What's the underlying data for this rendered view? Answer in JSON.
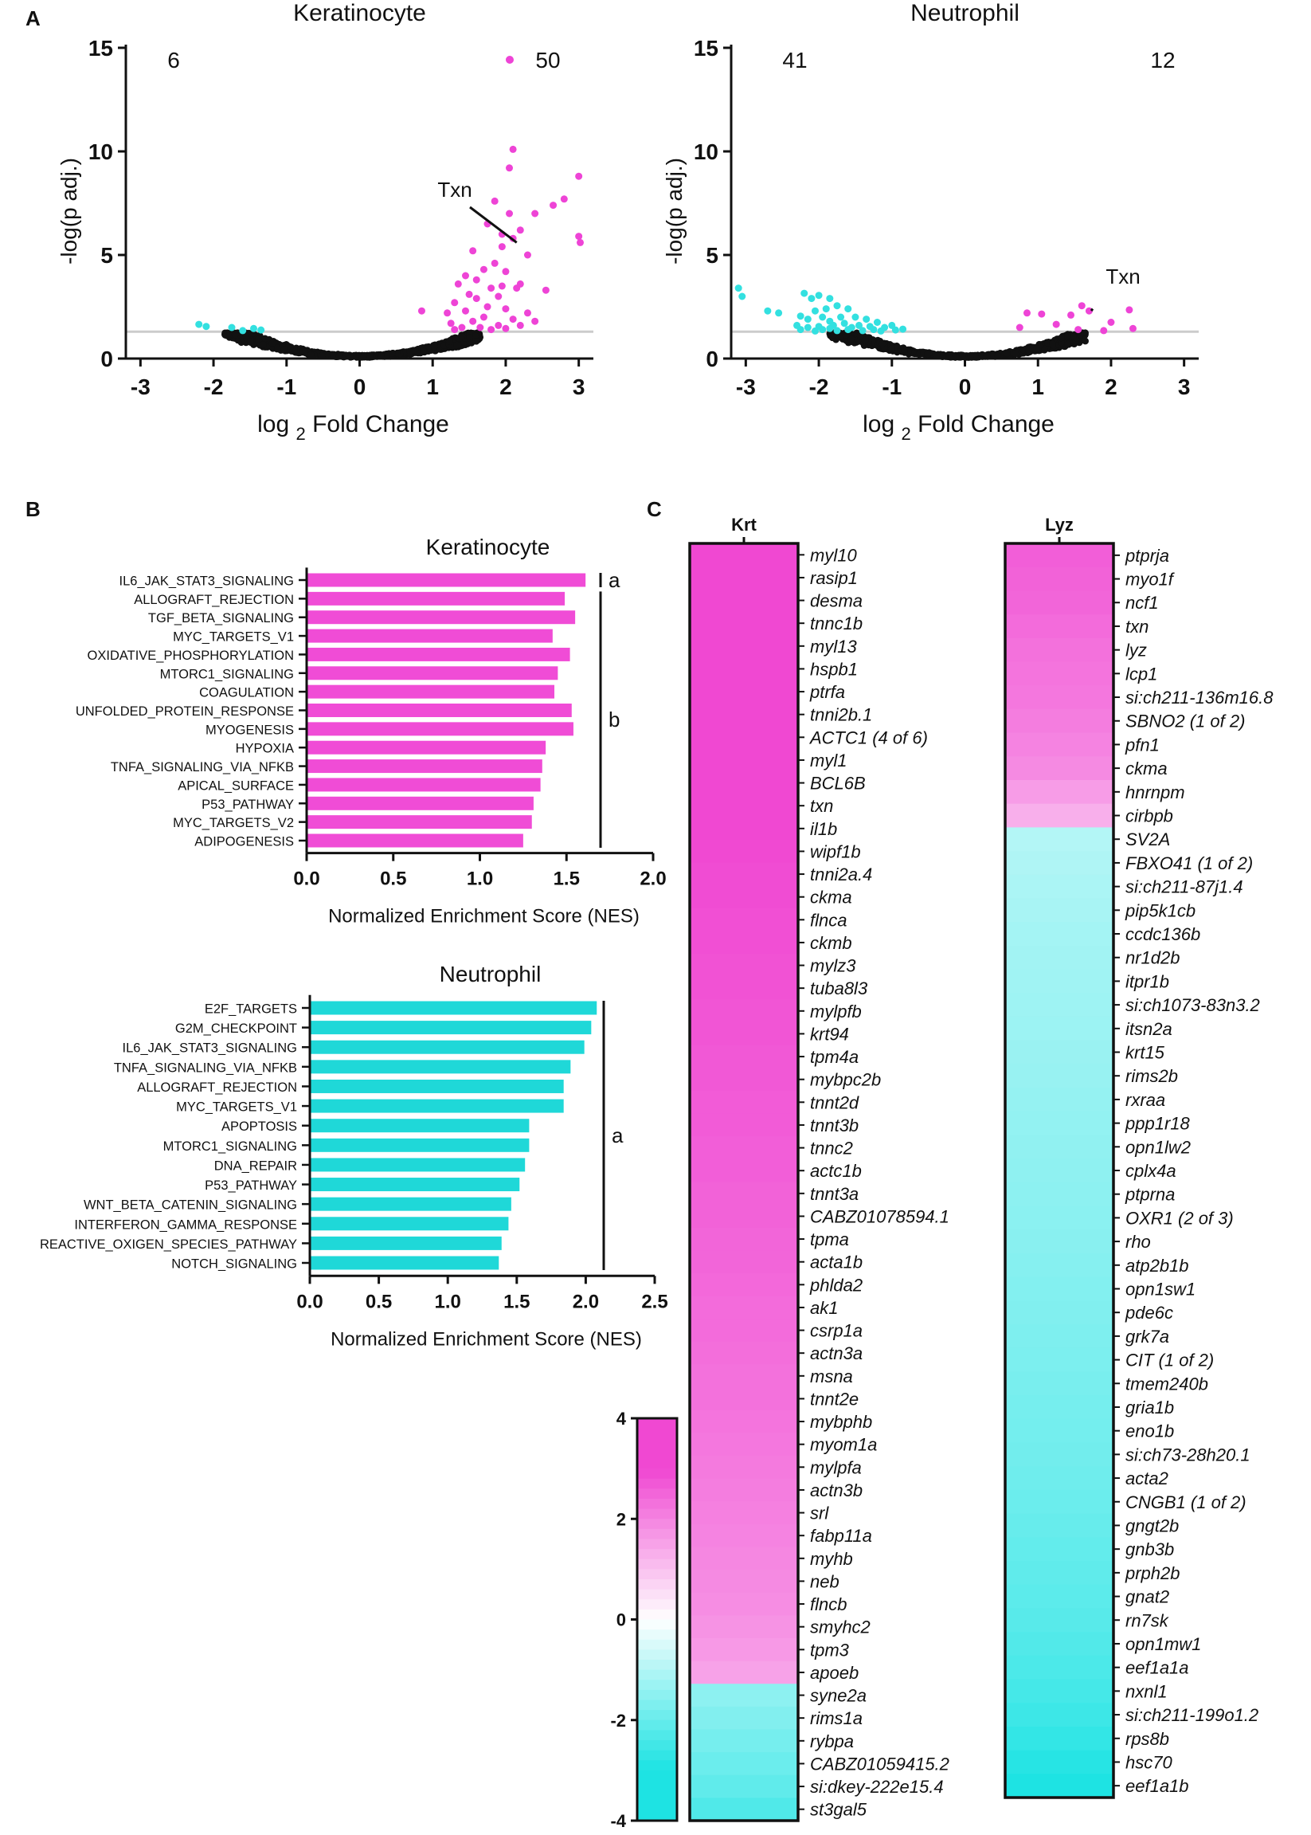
{
  "panel_labels": [
    "A",
    "B",
    "C"
  ],
  "chart_data": [
    {
      "type": "scatter",
      "panel": "A",
      "title": "Keratinocyte",
      "xlabel_main": "log",
      "xlabel_sub": "2",
      "xlabel_tail": "Fold Change",
      "ylabel": "-log(p adj.)",
      "xlim": [
        -3.2,
        3.2
      ],
      "ylim": [
        0,
        15
      ],
      "xticks": [
        -3,
        -2,
        -1,
        0,
        1,
        2,
        3
      ],
      "yticks": [
        0,
        5,
        10,
        15
      ],
      "threshold": 1.3,
      "count_left": "6",
      "count_right": "50",
      "annotation": {
        "label": "Txn",
        "x": 2.15,
        "y": 5.6
      },
      "colors": {
        "up": "#ee44d6",
        "down": "#33e0e0",
        "ns": "#111111",
        "threshold": "#cccccc"
      },
      "points_up": [
        [
          2.1,
          10.1
        ],
        [
          2.05,
          9.2
        ],
        [
          3.0,
          8.8
        ],
        [
          2.8,
          7.7
        ],
        [
          2.65,
          7.4
        ],
        [
          1.85,
          7.6
        ],
        [
          2.05,
          7.0
        ],
        [
          2.4,
          7.0
        ],
        [
          1.75,
          6.5
        ],
        [
          2.2,
          6.2
        ],
        [
          1.95,
          6.0
        ],
        [
          2.1,
          5.8
        ],
        [
          3.0,
          5.9
        ],
        [
          3.02,
          5.6
        ],
        [
          1.55,
          5.2
        ],
        [
          1.95,
          5.4
        ],
        [
          2.3,
          5.0
        ],
        [
          1.85,
          4.6
        ],
        [
          1.7,
          4.3
        ],
        [
          2.0,
          4.2
        ],
        [
          1.45,
          4.0
        ],
        [
          1.6,
          3.8
        ],
        [
          2.2,
          3.6
        ],
        [
          1.35,
          3.6
        ],
        [
          1.95,
          3.5
        ],
        [
          2.15,
          3.4
        ],
        [
          1.8,
          3.4
        ],
        [
          1.5,
          3.1
        ],
        [
          2.55,
          3.3
        ],
        [
          1.9,
          3.0
        ],
        [
          1.6,
          2.9
        ],
        [
          1.3,
          2.7
        ],
        [
          1.75,
          2.5
        ],
        [
          2.0,
          2.4
        ],
        [
          1.45,
          2.3
        ],
        [
          2.3,
          2.2
        ],
        [
          1.2,
          2.2
        ],
        [
          1.7,
          2.0
        ],
        [
          2.1,
          1.9
        ],
        [
          1.55,
          1.8
        ],
        [
          2.4,
          1.8
        ],
        [
          1.25,
          1.7
        ],
        [
          1.9,
          1.6
        ],
        [
          2.2,
          1.6
        ],
        [
          1.4,
          1.5
        ],
        [
          1.65,
          1.5
        ],
        [
          2.0,
          1.45
        ],
        [
          1.3,
          1.4
        ],
        [
          1.8,
          1.4
        ],
        [
          0.85,
          2.3
        ]
      ],
      "points_down": [
        [
          -2.2,
          1.65
        ],
        [
          -2.1,
          1.55
        ],
        [
          -1.75,
          1.5
        ],
        [
          -1.45,
          1.45
        ],
        [
          -1.35,
          1.38
        ],
        [
          -1.6,
          1.35
        ]
      ],
      "ns_seed": 7
    },
    {
      "type": "scatter",
      "panel": "A",
      "title": "Neutrophil",
      "xlabel_main": "log",
      "xlabel_sub": "2",
      "xlabel_tail": "Fold Change",
      "ylabel": "-log(p adj.)",
      "xlim": [
        -3.2,
        3.2
      ],
      "ylim": [
        0,
        15
      ],
      "xticks": [
        -3,
        -2,
        -1,
        0,
        1,
        2,
        3
      ],
      "yticks": [
        0,
        5,
        10,
        15
      ],
      "threshold": 1.3,
      "count_left": "41",
      "count_right": "12",
      "annotation": {
        "label": "Txn",
        "x": 1.75,
        "y": 2.4
      },
      "colors": {
        "up": "#ee44d6",
        "down": "#33e0e0",
        "ns": "#111111",
        "threshold": "#cccccc"
      },
      "points_up": [
        [
          1.6,
          2.55
        ],
        [
          1.7,
          2.3
        ],
        [
          2.25,
          2.35
        ],
        [
          1.45,
          2.1
        ],
        [
          0.85,
          2.2
        ],
        [
          1.05,
          2.15
        ],
        [
          2.0,
          1.75
        ],
        [
          1.25,
          1.65
        ],
        [
          0.75,
          1.5
        ],
        [
          2.3,
          1.45
        ],
        [
          1.55,
          1.4
        ],
        [
          1.9,
          1.35
        ]
      ],
      "points_down": [
        [
          -3.1,
          3.4
        ],
        [
          -3.05,
          3.0
        ],
        [
          -2.2,
          3.15
        ],
        [
          -2.0,
          3.05
        ],
        [
          -2.1,
          2.9
        ],
        [
          -1.85,
          2.9
        ],
        [
          -2.7,
          2.3
        ],
        [
          -2.55,
          2.2
        ],
        [
          -2.05,
          2.3
        ],
        [
          -1.9,
          2.4
        ],
        [
          -1.75,
          2.55
        ],
        [
          -1.6,
          2.4
        ],
        [
          -2.25,
          2.05
        ],
        [
          -2.15,
          1.9
        ],
        [
          -1.95,
          2.0
        ],
        [
          -1.85,
          1.8
        ],
        [
          -1.7,
          2.0
        ],
        [
          -1.5,
          2.0
        ],
        [
          -1.35,
          1.9
        ],
        [
          -1.2,
          1.75
        ],
        [
          -2.3,
          1.6
        ],
        [
          -2.15,
          1.5
        ],
        [
          -2.0,
          1.55
        ],
        [
          -1.8,
          1.6
        ],
        [
          -1.65,
          1.7
        ],
        [
          -1.55,
          1.5
        ],
        [
          -1.45,
          1.6
        ],
        [
          -1.3,
          1.55
        ],
        [
          -1.1,
          1.5
        ],
        [
          -1.0,
          1.6
        ],
        [
          -2.25,
          1.4
        ],
        [
          -1.95,
          1.4
        ],
        [
          -1.75,
          1.35
        ],
        [
          -1.6,
          1.4
        ],
        [
          -1.4,
          1.35
        ],
        [
          -1.25,
          1.4
        ],
        [
          -0.95,
          1.38
        ],
        [
          -2.05,
          1.33
        ],
        [
          -1.85,
          1.45
        ],
        [
          -1.15,
          1.33
        ],
        [
          -0.85,
          1.42
        ]
      ],
      "ns_seed": 13
    },
    {
      "type": "bar",
      "panel": "B",
      "orientation": "horizontal",
      "title": "Keratinocyte",
      "xlabel": "Normalized Enrichment Score (NES)",
      "xlim": [
        0,
        2.0
      ],
      "xticks": [
        "0.0",
        "0.5",
        "1.0",
        "1.5",
        "2.0"
      ],
      "color": "#f04cd6",
      "categories": [
        "IL6_JAK_STAT3_SIGNALING",
        "ALLOGRAFT_REJECTION",
        "TGF_BETA_SIGNALING",
        "MYC_TARGETS_V1",
        "OXIDATIVE_PHOSPHORYLATION",
        "MTORC1_SIGNALING",
        "COAGULATION",
        "UNFOLDED_PROTEIN_RESPONSE",
        "MYOGENESIS",
        "HYPOXIA",
        "TNFA_SIGNALING_VIA_NFKB",
        "APICAL_SURFACE",
        "P53_PATHWAY",
        "MYC_TARGETS_V2",
        "ADIPOGENESIS"
      ],
      "values": [
        1.61,
        1.49,
        1.55,
        1.42,
        1.52,
        1.45,
        1.43,
        1.53,
        1.54,
        1.38,
        1.36,
        1.35,
        1.31,
        1.3,
        1.25
      ],
      "brackets": [
        {
          "label": "a",
          "from": 0,
          "to": 0
        },
        {
          "label": "b",
          "from": 1,
          "to": 14
        }
      ]
    },
    {
      "type": "bar",
      "panel": "B",
      "orientation": "horizontal",
      "title": "Neutrophil",
      "xlabel": "Normalized Enrichment Score (NES)",
      "xlim": [
        0,
        2.5
      ],
      "xticks": [
        "0.0",
        "0.5",
        "1.0",
        "1.5",
        "2.0",
        "2.5"
      ],
      "color": "#1fd8d8",
      "categories": [
        "E2F_TARGETS",
        "G2M_CHECKPOINT",
        "IL6_JAK_STAT3_SIGNALING",
        "TNFA_SIGNALING_VIA_NFKB",
        "ALLOGRAFT_REJECTION",
        "MYC_TARGETS_V1",
        "APOPTOSIS",
        "MTORC1_SIGNALING",
        "DNA_REPAIR",
        "P53_PATHWAY",
        "WNT_BETA_CATENIN_SIGNALING",
        "INTERFERON_GAMMA_RESPONSE",
        "REACTIVE_OXIGEN_SPECIES_PATHWAY",
        "NOTCH_SIGNALING"
      ],
      "values": [
        2.08,
        2.04,
        1.99,
        1.89,
        1.84,
        1.84,
        1.59,
        1.59,
        1.56,
        1.52,
        1.46,
        1.44,
        1.39,
        1.37
      ],
      "brackets": [
        {
          "label": "a",
          "from": 0,
          "to": 13
        }
      ]
    },
    {
      "type": "heatmap",
      "panel": "C",
      "title": "Krt",
      "genes": [
        "myl10",
        "rasip1",
        "desma",
        "tnnc1b",
        "myl13",
        "hspb1",
        "ptrfa",
        "tnni2b.1",
        "ACTC1 (4 of 6)",
        "myl1",
        "BCL6B",
        "txn",
        "il1b",
        "wipf1b",
        "tnni2a.4",
        "ckma",
        "flnca",
        "ckmb",
        "mylz3",
        "tuba8l3",
        "mylpfb",
        "krt94",
        "tpm4a",
        "mybpc2b",
        "tnnt2d",
        "tnnt3b",
        "tnnc2",
        "actc1b",
        "tnnt3a",
        "CABZ01078594.1",
        "tpma",
        "acta1b",
        "phlda2",
        "ak1",
        "csrp1a",
        "actn3a",
        "msna",
        "tnnt2e",
        "mybphb",
        "myom1a",
        "mylpfa",
        "actn3b",
        "srl",
        "fabp11a",
        "myhb",
        "neb",
        "flncb",
        "smyhc2",
        "tpm3",
        "apoeb",
        "syne2a",
        "rims1a",
        "rybpa",
        "CABZ01059415.2",
        "si:dkey-222e15.4",
        "st3gal5"
      ],
      "values": [
        3.6,
        3.5,
        3.45,
        3.4,
        3.35,
        3.3,
        3.25,
        3.2,
        3.15,
        3.1,
        3.05,
        3.0,
        3.0,
        2.95,
        2.9,
        2.9,
        2.85,
        2.85,
        2.8,
        2.8,
        2.75,
        2.75,
        2.7,
        2.7,
        2.65,
        2.65,
        2.6,
        2.6,
        2.55,
        2.55,
        2.5,
        2.5,
        2.45,
        2.4,
        2.4,
        2.35,
        2.3,
        2.3,
        2.25,
        2.2,
        2.15,
        2.1,
        2.05,
        2.0,
        1.95,
        1.9,
        1.85,
        1.75,
        1.65,
        1.5,
        -1.5,
        -1.65,
        -1.8,
        -1.95,
        -2.1,
        -2.3
      ]
    },
    {
      "type": "heatmap",
      "panel": "C",
      "title": "Lyz",
      "genes": [
        "ptprja",
        "myo1f",
        "ncf1",
        "txn",
        "lyz",
        "lcp1",
        "si:ch211-136m16.8",
        "SBNO2 (1 of 2)",
        "pfn1",
        "ckma",
        "hnrnpm",
        "cirbpb",
        "SV2A",
        "FBXO41 (1 of 2)",
        "si:ch211-87j1.4",
        "pip5k1cb",
        "ccdc136b",
        "nr1d2b",
        "itpr1b",
        "si:ch1073-83n3.2",
        "itsn2a",
        "krt15",
        "rims2b",
        "rxraa",
        "ppp1r18",
        "opn1lw2",
        "cplx4a",
        "ptprna",
        "OXR1 (2 of 3)",
        "rho",
        "atp2b1b",
        "opn1sw1",
        "pde6c",
        "grk7a",
        "CIT (1 of 2)",
        "tmem240b",
        "gria1b",
        "eno1b",
        "si:ch73-28h20.1",
        "acta2",
        "CNGB1 (1 of 2)",
        "gngt2b",
        "gnb3b",
        "prph2b",
        "gnat2",
        "rn7sk",
        "opn1mw1",
        "eef1a1a",
        "nxnl1",
        "si:ch211-199o1.2",
        "rps8b",
        "hsc70",
        "eef1a1b"
      ],
      "values": [
        2.6,
        2.55,
        2.5,
        2.4,
        2.3,
        2.25,
        2.2,
        2.1,
        2.0,
        1.9,
        1.6,
        1.3,
        -1.0,
        -1.05,
        -1.1,
        -1.15,
        -1.2,
        -1.22,
        -1.25,
        -1.28,
        -1.3,
        -1.33,
        -1.36,
        -1.4,
        -1.42,
        -1.45,
        -1.48,
        -1.5,
        -1.53,
        -1.56,
        -1.6,
        -1.63,
        -1.66,
        -1.7,
        -1.73,
        -1.76,
        -1.8,
        -1.83,
        -1.86,
        -1.9,
        -1.95,
        -2.0,
        -2.05,
        -2.1,
        -2.15,
        -2.2,
        -2.28,
        -2.36,
        -2.45,
        -2.55,
        -2.68,
        -2.85,
        -3.4
      ]
    },
    {
      "type": "colorbar",
      "panel": "C",
      "range": [
        -4,
        4
      ],
      "ticks": [
        4,
        2,
        0,
        -2,
        -4
      ],
      "colors": {
        "high": "#f048d2",
        "mid": "#ffffff",
        "low": "#1ee3e3"
      }
    }
  ]
}
